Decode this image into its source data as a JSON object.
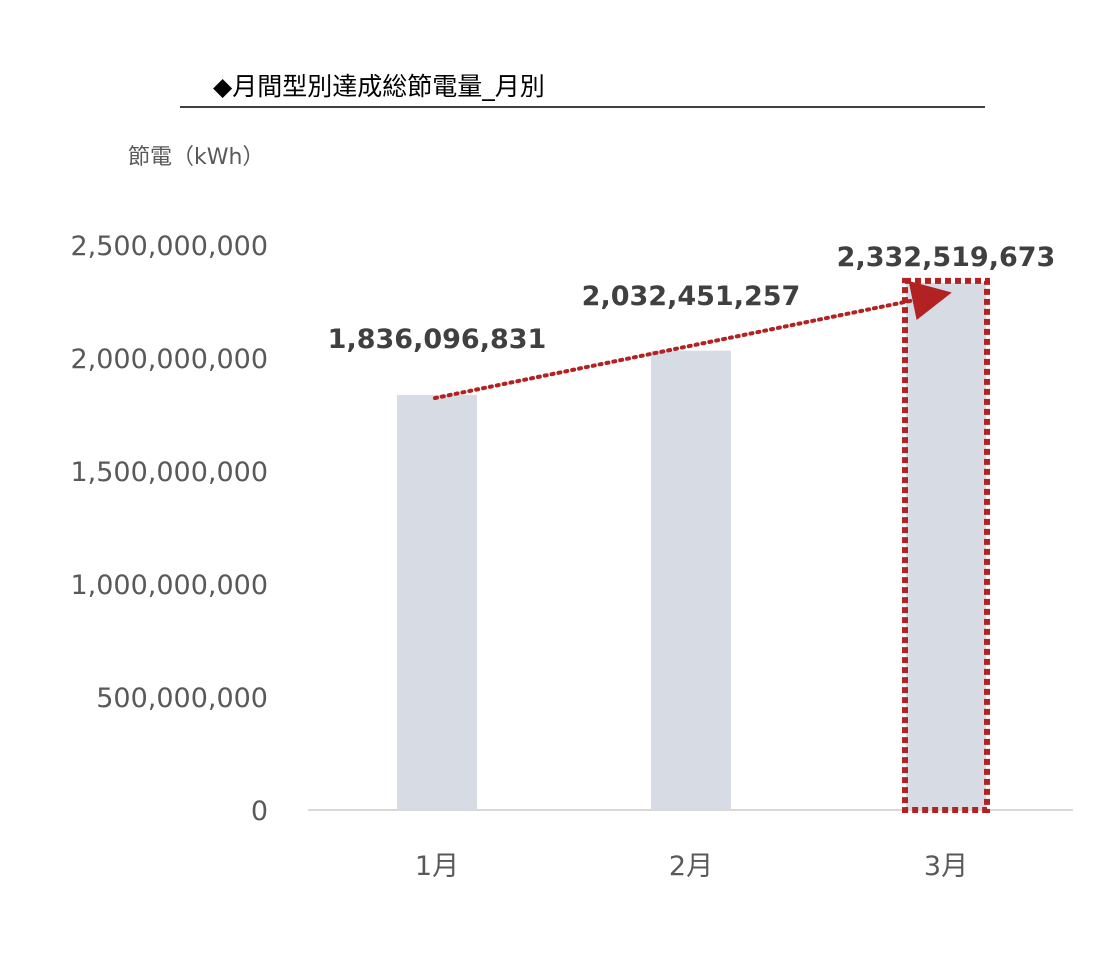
{
  "chart_data": {
    "type": "bar",
    "title": "◆月間型別達成総節電量_月別",
    "ylabel": "節電（kWh）",
    "xlabel": "",
    "categories": [
      "1月",
      "2月",
      "3月"
    ],
    "values": [
      1836096831,
      2032451257,
      2332519673
    ],
    "data_labels": [
      "1,836,096,831",
      "2,032,451,257",
      "2,332,519,673"
    ],
    "ylim": [
      0,
      2500000000
    ],
    "yticks": [
      0,
      500000000,
      1000000000,
      1500000000,
      2000000000,
      2500000000
    ],
    "ytick_labels": [
      "0",
      "500,000,000",
      "1,000,000,000",
      "1,500,000,000",
      "2,000,000,000",
      "2,500,000,000"
    ],
    "grid": false,
    "highlighted_category": "3月",
    "trend_arrow": {
      "from": "1月",
      "to": "3月"
    },
    "colors": {
      "bar": "#d6dbe4",
      "highlight": "#b22222",
      "axis_text": "#595959",
      "label_text": "#404040",
      "title_rule": "#000000",
      "axis_line": "#d9d9d9"
    }
  }
}
